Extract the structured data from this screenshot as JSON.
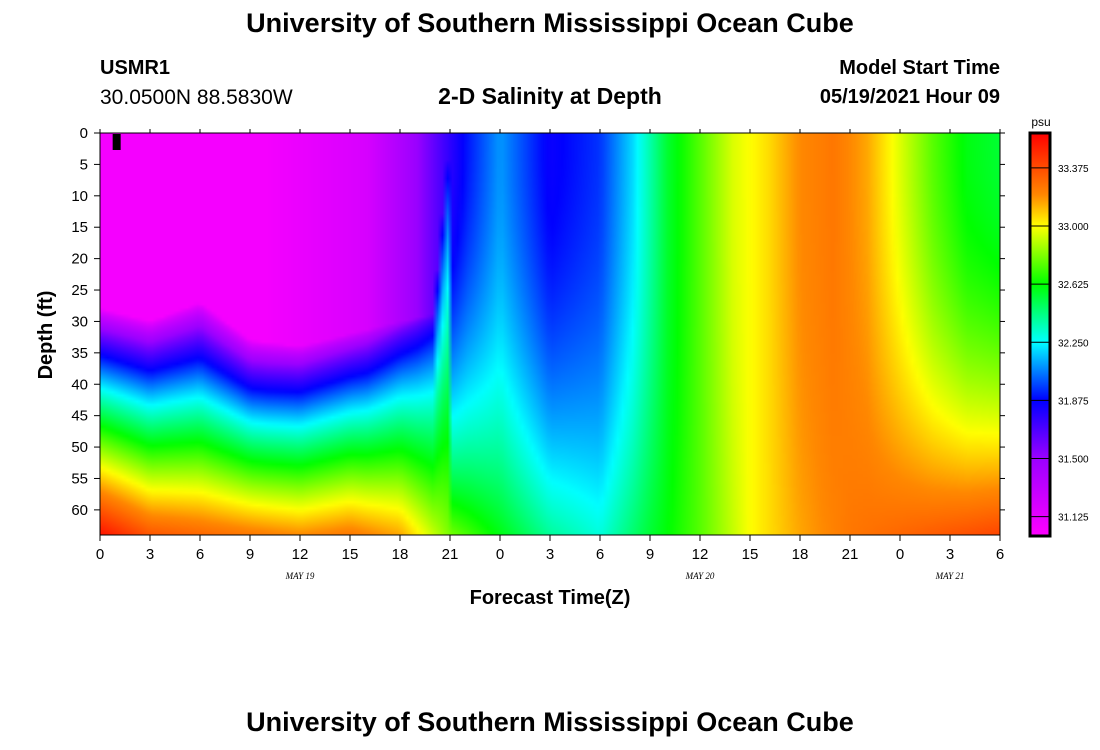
{
  "header": {
    "title": "University of Southern Mississippi Ocean Cube",
    "station_id": "USMR1",
    "coordinates": "30.0500N  88.5830W",
    "plot_title": "2-D Salinity at Depth",
    "model_start_label": "Model Start Time",
    "model_start_value": "05/19/2021 Hour 09"
  },
  "footer": {
    "title": "University of Southern Mississippi Ocean Cube"
  },
  "chart_data": {
    "type": "heatmap",
    "title": "2-D Salinity at Depth",
    "xlabel": "Forecast Time(Z)",
    "ylabel": "Depth (ft)",
    "x_range_hours": [
      0,
      54
    ],
    "ylim": [
      0,
      64
    ],
    "x_ticks": [
      {
        "hour": 0,
        "label": "0"
      },
      {
        "hour": 3,
        "label": "3"
      },
      {
        "hour": 6,
        "label": "6"
      },
      {
        "hour": 9,
        "label": "9"
      },
      {
        "hour": 12,
        "label": "12"
      },
      {
        "hour": 15,
        "label": "15"
      },
      {
        "hour": 18,
        "label": "18"
      },
      {
        "hour": 21,
        "label": "21"
      },
      {
        "hour": 24,
        "label": "0"
      },
      {
        "hour": 27,
        "label": "3"
      },
      {
        "hour": 30,
        "label": "6"
      },
      {
        "hour": 33,
        "label": "9"
      },
      {
        "hour": 36,
        "label": "12"
      },
      {
        "hour": 39,
        "label": "15"
      },
      {
        "hour": 42,
        "label": "18"
      },
      {
        "hour": 45,
        "label": "21"
      },
      {
        "hour": 48,
        "label": "0"
      },
      {
        "hour": 51,
        "label": "3"
      },
      {
        "hour": 54,
        "label": "6"
      }
    ],
    "date_labels": [
      {
        "hour": 12,
        "label": "MAY 19"
      },
      {
        "hour": 36,
        "label": "MAY 20"
      },
      {
        "hour": 51,
        "label": "MAY 21"
      }
    ],
    "y_ticks": [
      0,
      5,
      10,
      15,
      20,
      25,
      30,
      35,
      40,
      45,
      50,
      55,
      60
    ],
    "model_start_hour": 1,
    "colorbar": {
      "unit": "psu",
      "min": 31.0,
      "max": 33.6,
      "tick_values": [
        31.125,
        31.5,
        31.875,
        32.25,
        32.625,
        33.0,
        33.375
      ],
      "tick_labels": [
        "31.125",
        "31.500",
        "31.875",
        "32.250",
        "32.625",
        "33.000",
        "33.375"
      ],
      "colors": [
        {
          "value": 31.0,
          "color": "#ff00ff"
        },
        {
          "value": 31.5,
          "color": "#9b00ff"
        },
        {
          "value": 31.875,
          "color": "#0000ff"
        },
        {
          "value": 32.25,
          "color": "#00ffff"
        },
        {
          "value": 32.625,
          "color": "#00ff00"
        },
        {
          "value": 33.0,
          "color": "#ffff00"
        },
        {
          "value": 33.2,
          "color": "#ff8800"
        },
        {
          "value": 33.6,
          "color": "#ff0000"
        }
      ]
    },
    "salinity_profile": {
      "description": "Estimated surface-layer salinity (psu) by forecast hour and estimated bottom salinity by hour",
      "surface_hours": [
        0,
        10,
        16,
        19,
        22,
        24,
        27,
        30,
        32,
        34,
        36,
        38,
        40,
        42,
        44,
        46,
        48,
        50,
        52,
        54
      ],
      "surface_values": [
        31.05,
        31.05,
        31.2,
        31.5,
        31.9,
        32.1,
        31.85,
        31.95,
        32.2,
        32.55,
        32.75,
        32.95,
        33.05,
        33.2,
        33.25,
        33.15,
        32.95,
        32.75,
        32.6,
        32.55
      ],
      "bottom_hours": [
        0,
        3,
        6,
        9,
        12,
        15,
        18,
        21,
        24,
        27,
        30,
        33,
        36,
        39,
        42,
        45,
        48,
        51,
        54
      ],
      "bottom_values": [
        33.55,
        33.35,
        33.3,
        33.25,
        33.2,
        33.25,
        33.15,
        32.8,
        32.6,
        32.4,
        32.3,
        32.55,
        32.75,
        33.0,
        33.15,
        33.25,
        33.3,
        33.35,
        33.4
      ],
      "halocline_depth_hours": [
        0,
        3,
        6,
        9,
        12,
        15,
        18,
        20,
        21
      ],
      "halocline_depth_values": [
        28,
        30,
        27,
        33,
        34,
        32,
        30,
        29,
        0
      ]
    }
  }
}
